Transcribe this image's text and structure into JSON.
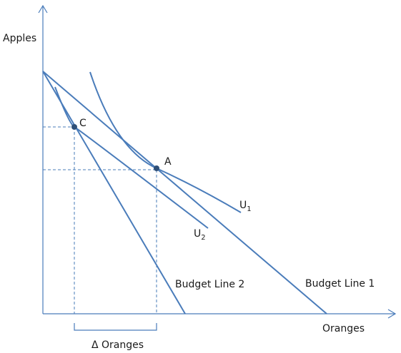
{
  "axes": {
    "y_label": "Apples",
    "x_label": "Oranges"
  },
  "points": {
    "a": "A",
    "c": "C"
  },
  "curves": {
    "u1": {
      "base": "U",
      "sub": "1"
    },
    "u2": {
      "base": "U",
      "sub": "2"
    }
  },
  "budget_lines": {
    "line1": "Budget Line 1",
    "line2": "Budget Line 2"
  },
  "bracket_label": "Δ Oranges",
  "colors": {
    "line": "#4a7cba",
    "point": "#2e4f78"
  }
}
